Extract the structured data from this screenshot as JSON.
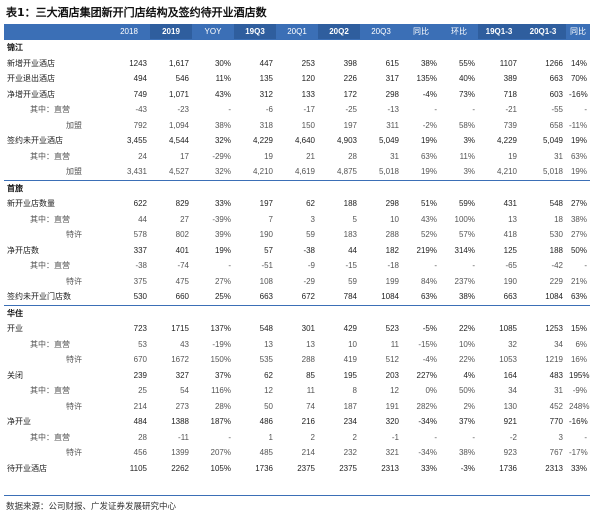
{
  "title": "表1：三大酒店集团新开门店结构及签约待开业酒店数",
  "source": "数据来源：公司财报、广发证券发展研究中心",
  "columns": [
    "",
    "2018",
    "2019",
    "YOY",
    "19Q3",
    "20Q1",
    "20Q2",
    "20Q3",
    "同比",
    "环比",
    "19Q1-3",
    "20Q1-3",
    "同比"
  ],
  "rows": [
    {
      "type": "sec",
      "cells": [
        "锦江",
        "",
        "",
        "",
        "",
        "",
        "",
        "",
        "",
        "",
        "",
        "",
        ""
      ]
    },
    {
      "type": "l1",
      "cells": [
        "新增开业酒店",
        "1243",
        "1,617",
        "30%",
        "447",
        "253",
        "398",
        "615",
        "38%",
        "55%",
        "1107",
        "1266",
        "14%"
      ]
    },
    {
      "type": "l1",
      "cells": [
        "开业退出酒店",
        "494",
        "546",
        "11%",
        "135",
        "120",
        "226",
        "317",
        "135%",
        "40%",
        "389",
        "663",
        "70%"
      ]
    },
    {
      "type": "l1",
      "cells": [
        "净增开业酒店",
        "749",
        "1,071",
        "43%",
        "312",
        "133",
        "172",
        "298",
        "-4%",
        "73%",
        "718",
        "603",
        "-16%"
      ]
    },
    {
      "type": "l2",
      "cells": [
        "其中：直营",
        "-43",
        "-23",
        "-",
        "-6",
        "-17",
        "-25",
        "-13",
        "-",
        "-",
        "-21",
        "-55",
        "-"
      ]
    },
    {
      "type": "l3",
      "cells": [
        "加盟",
        "792",
        "1,094",
        "38%",
        "318",
        "150",
        "197",
        "311",
        "-2%",
        "58%",
        "739",
        "658",
        "-11%"
      ]
    },
    {
      "type": "l1",
      "cells": [
        "签约未开业酒店",
        "3,455",
        "4,544",
        "32%",
        "4,229",
        "4,640",
        "4,903",
        "5,049",
        "19%",
        "3%",
        "4,229",
        "5,049",
        "19%"
      ]
    },
    {
      "type": "l2",
      "cells": [
        "其中：直营",
        "24",
        "17",
        "-29%",
        "19",
        "21",
        "28",
        "31",
        "63%",
        "11%",
        "19",
        "31",
        "63%"
      ]
    },
    {
      "type": "l3",
      "cells": [
        "加盟",
        "3,431",
        "4,527",
        "32%",
        "4,210",
        "4,619",
        "4,875",
        "5,018",
        "19%",
        "3%",
        "4,210",
        "5,018",
        "19%"
      ]
    },
    {
      "type": "sec",
      "cells": [
        "首旅",
        "",
        "",
        "",
        "",
        "",
        "",
        "",
        "",
        "",
        "",
        "",
        ""
      ]
    },
    {
      "type": "l1",
      "cells": [
        "新开业店数量",
        "622",
        "829",
        "33%",
        "197",
        "62",
        "188",
        "298",
        "51%",
        "59%",
        "431",
        "548",
        "27%"
      ]
    },
    {
      "type": "l2",
      "cells": [
        "其中：直营",
        "44",
        "27",
        "-39%",
        "7",
        "3",
        "5",
        "10",
        "43%",
        "100%",
        "13",
        "18",
        "38%"
      ]
    },
    {
      "type": "l3",
      "cells": [
        "特许",
        "578",
        "802",
        "39%",
        "190",
        "59",
        "183",
        "288",
        "52%",
        "57%",
        "418",
        "530",
        "27%"
      ]
    },
    {
      "type": "l1",
      "cells": [
        "净开店数",
        "337",
        "401",
        "19%",
        "57",
        "-38",
        "44",
        "182",
        "219%",
        "314%",
        "125",
        "188",
        "50%"
      ]
    },
    {
      "type": "l2",
      "cells": [
        "其中：直营",
        "-38",
        "-74",
        "-",
        "-51",
        "-9",
        "-15",
        "-18",
        "-",
        "-",
        "-65",
        "-42",
        "-"
      ]
    },
    {
      "type": "l3",
      "cells": [
        "特许",
        "375",
        "475",
        "27%",
        "108",
        "-29",
        "59",
        "199",
        "84%",
        "237%",
        "190",
        "229",
        "21%"
      ]
    },
    {
      "type": "l1",
      "cells": [
        "签约未开业门店数",
        "530",
        "660",
        "25%",
        "663",
        "672",
        "784",
        "1084",
        "63%",
        "38%",
        "663",
        "1084",
        "63%"
      ]
    },
    {
      "type": "sec",
      "cells": [
        "华住",
        "",
        "",
        "",
        "",
        "",
        "",
        "",
        "",
        "",
        "",
        "",
        ""
      ]
    },
    {
      "type": "l1",
      "cells": [
        "开业",
        "723",
        "1715",
        "137%",
        "548",
        "301",
        "429",
        "523",
        "-5%",
        "22%",
        "1085",
        "1253",
        "15%"
      ]
    },
    {
      "type": "l2",
      "cells": [
        "其中：直营",
        "53",
        "43",
        "-19%",
        "13",
        "13",
        "10",
        "11",
        "-15%",
        "10%",
        "32",
        "34",
        "6%"
      ]
    },
    {
      "type": "l3",
      "cells": [
        "特许",
        "670",
        "1672",
        "150%",
        "535",
        "288",
        "419",
        "512",
        "-4%",
        "22%",
        "1053",
        "1219",
        "16%"
      ]
    },
    {
      "type": "l1",
      "cells": [
        "关闭",
        "239",
        "327",
        "37%",
        "62",
        "85",
        "195",
        "203",
        "227%",
        "4%",
        "164",
        "483",
        "195%"
      ]
    },
    {
      "type": "l2",
      "cells": [
        "其中：直营",
        "25",
        "54",
        "116%",
        "12",
        "11",
        "8",
        "12",
        "0%",
        "50%",
        "34",
        "31",
        "-9%"
      ]
    },
    {
      "type": "l3",
      "cells": [
        "特许",
        "214",
        "273",
        "28%",
        "50",
        "74",
        "187",
        "191",
        "282%",
        "2%",
        "130",
        "452",
        "248%"
      ]
    },
    {
      "type": "l1",
      "cells": [
        "净开业",
        "484",
        "1388",
        "187%",
        "486",
        "216",
        "234",
        "320",
        "-34%",
        "37%",
        "921",
        "770",
        "-16%"
      ]
    },
    {
      "type": "l2",
      "cells": [
        "其中：直营",
        "28",
        "-11",
        "-",
        "1",
        "2",
        "2",
        "-1",
        "-",
        "-",
        "-2",
        "3",
        "-"
      ]
    },
    {
      "type": "l3",
      "cells": [
        "特许",
        "456",
        "1399",
        "207%",
        "485",
        "214",
        "232",
        "321",
        "-34%",
        "38%",
        "923",
        "767",
        "-17%"
      ]
    },
    {
      "type": "l1",
      "cells": [
        "待开业酒店",
        "1105",
        "2262",
        "105%",
        "1736",
        "2375",
        "2375",
        "2313",
        "33%",
        "-3%",
        "1736",
        "2313",
        "33%"
      ]
    }
  ]
}
